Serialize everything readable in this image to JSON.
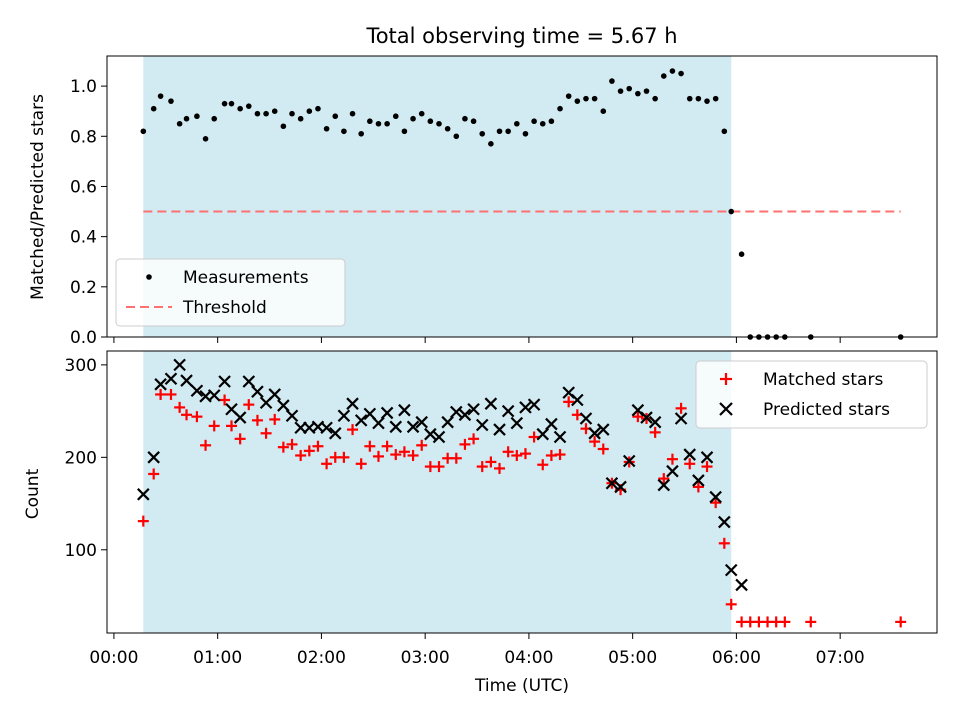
{
  "colors": {
    "shade": "#add8e6",
    "measurement": "#000000",
    "threshold": "#ff7070",
    "matched": "#ff0000",
    "predicted": "#000000"
  },
  "chart_data": [
    {
      "type": "scatter",
      "title": "Total observing time = 5.67 h",
      "ylabel": "Matched/Predicted stars",
      "xlabel": "",
      "xlim": [
        "23:56",
        "07:56"
      ],
      "ylim": [
        0,
        1.12
      ],
      "yticks": [
        "0.0",
        "0.2",
        "0.4",
        "0.6",
        "0.8",
        "1.0"
      ],
      "legend": {
        "placement": "lower-left",
        "entries": [
          "Measurements",
          "Threshold"
        ]
      },
      "shaded_interval": [
        "00:17",
        "05:57"
      ],
      "threshold": {
        "y": 0.5,
        "x_range": [
          "00:17",
          "07:35"
        ]
      },
      "series": [
        {
          "name": "Measurements",
          "x": [
            "00:17",
            "00:23",
            "00:27",
            "00:33",
            "00:38",
            "00:42",
            "00:48",
            "00:53",
            "00:58",
            "01:04",
            "01:08",
            "01:13",
            "01:18",
            "01:23",
            "01:28",
            "01:33",
            "01:38",
            "01:43",
            "01:48",
            "01:53",
            "01:58",
            "02:03",
            "02:08",
            "02:13",
            "02:18",
            "02:23",
            "02:28",
            "02:33",
            "02:38",
            "02:43",
            "02:48",
            "02:53",
            "02:58",
            "03:03",
            "03:08",
            "03:13",
            "03:18",
            "03:23",
            "03:28",
            "03:33",
            "03:38",
            "03:43",
            "03:48",
            "03:53",
            "03:58",
            "04:03",
            "04:08",
            "04:13",
            "04:18",
            "04:23",
            "04:28",
            "04:33",
            "04:38",
            "04:43",
            "04:48",
            "04:53",
            "04:58",
            "05:03",
            "05:08",
            "05:13",
            "05:18",
            "05:23",
            "05:28",
            "05:33",
            "05:38",
            "05:43",
            "05:48",
            "05:53",
            "05:57",
            "06:03",
            "06:08",
            "06:13",
            "06:18",
            "06:23",
            "06:28",
            "06:43",
            "07:35"
          ],
          "y": [
            0.82,
            0.91,
            0.96,
            0.94,
            0.85,
            0.87,
            0.88,
            0.79,
            0.87,
            0.93,
            0.93,
            0.91,
            0.92,
            0.89,
            0.89,
            0.9,
            0.84,
            0.89,
            0.87,
            0.9,
            0.91,
            0.83,
            0.88,
            0.82,
            0.89,
            0.81,
            0.86,
            0.85,
            0.85,
            0.88,
            0.82,
            0.87,
            0.89,
            0.86,
            0.85,
            0.83,
            0.8,
            0.87,
            0.86,
            0.81,
            0.77,
            0.82,
            0.82,
            0.85,
            0.81,
            0.86,
            0.85,
            0.86,
            0.91,
            0.96,
            0.94,
            0.95,
            0.95,
            0.9,
            1.02,
            0.98,
            0.99,
            0.97,
            0.98,
            0.95,
            1.04,
            1.06,
            1.05,
            0.95,
            0.95,
            0.94,
            0.95,
            0.82,
            0.5,
            0.33,
            0.0,
            0.0,
            0.0,
            0.0,
            0.0,
            0.0,
            0.0
          ]
        }
      ]
    },
    {
      "type": "scatter",
      "title": "",
      "ylabel": "Count",
      "xlabel": "Time (UTC)",
      "xlim": [
        "23:56",
        "07:56"
      ],
      "ylim": [
        10,
        315
      ],
      "yticks": [
        "100",
        "200",
        "300"
      ],
      "xticks": [
        "00:00",
        "01:00",
        "02:00",
        "03:00",
        "04:00",
        "05:00",
        "06:00",
        "07:00"
      ],
      "legend": {
        "placement": "upper-right",
        "entries": [
          "Matched stars",
          "Predicted stars"
        ]
      },
      "shaded_interval": [
        "00:17",
        "05:57"
      ],
      "series": [
        {
          "name": "Matched stars",
          "x": [
            "00:17",
            "00:23",
            "00:27",
            "00:33",
            "00:38",
            "00:42",
            "00:48",
            "00:53",
            "00:58",
            "01:04",
            "01:08",
            "01:13",
            "01:18",
            "01:23",
            "01:28",
            "01:33",
            "01:38",
            "01:43",
            "01:48",
            "01:53",
            "01:58",
            "02:03",
            "02:08",
            "02:13",
            "02:18",
            "02:23",
            "02:28",
            "02:33",
            "02:38",
            "02:43",
            "02:48",
            "02:53",
            "02:58",
            "03:03",
            "03:08",
            "03:13",
            "03:18",
            "03:23",
            "03:28",
            "03:33",
            "03:38",
            "03:43",
            "03:48",
            "03:53",
            "03:58",
            "04:03",
            "04:08",
            "04:13",
            "04:18",
            "04:23",
            "04:28",
            "04:33",
            "04:38",
            "04:43",
            "04:48",
            "04:53",
            "04:58",
            "05:03",
            "05:08",
            "05:13",
            "05:18",
            "05:23",
            "05:28",
            "05:33",
            "05:38",
            "05:43",
            "05:48",
            "05:53",
            "05:57",
            "06:03",
            "06:08",
            "06:13",
            "06:18",
            "06:23",
            "06:28",
            "06:43",
            "07:35"
          ],
          "y": [
            131,
            182,
            268,
            268,
            254,
            246,
            244,
            213,
            234,
            262,
            234,
            220,
            257,
            240,
            226,
            241,
            211,
            214,
            202,
            207,
            212,
            193,
            200,
            200,
            230,
            193,
            212,
            201,
            212,
            203,
            206,
            202,
            213,
            190,
            190,
            199,
            199,
            214,
            220,
            190,
            195,
            188,
            206,
            202,
            204,
            222,
            192,
            202,
            203,
            260,
            246,
            231,
            217,
            209,
            172,
            165,
            195,
            244,
            242,
            227,
            177,
            198,
            253,
            193,
            168,
            190,
            151,
            107,
            41,
            22,
            22,
            22,
            22,
            22,
            22,
            22,
            22
          ]
        },
        {
          "name": "Predicted stars",
          "x": [
            "00:17",
            "00:23",
            "00:27",
            "00:33",
            "00:38",
            "00:42",
            "00:48",
            "00:53",
            "00:58",
            "01:04",
            "01:08",
            "01:13",
            "01:18",
            "01:23",
            "01:28",
            "01:33",
            "01:38",
            "01:43",
            "01:48",
            "01:53",
            "01:58",
            "02:03",
            "02:08",
            "02:13",
            "02:18",
            "02:23",
            "02:28",
            "02:33",
            "02:38",
            "02:43",
            "02:48",
            "02:53",
            "02:58",
            "03:03",
            "03:08",
            "03:13",
            "03:18",
            "03:23",
            "03:28",
            "03:33",
            "03:38",
            "03:43",
            "03:48",
            "03:53",
            "03:58",
            "04:03",
            "04:08",
            "04:13",
            "04:18",
            "04:23",
            "04:28",
            "04:33",
            "04:38",
            "04:43",
            "04:48",
            "04:53",
            "04:58",
            "05:03",
            "05:08",
            "05:13",
            "05:18",
            "05:23",
            "05:28",
            "05:33",
            "05:38",
            "05:43",
            "05:48",
            "05:53",
            "05:57",
            "06:03"
          ],
          "y": [
            160,
            200,
            279,
            285,
            300,
            283,
            272,
            266,
            267,
            282,
            252,
            243,
            282,
            271,
            259,
            268,
            256,
            245,
            232,
            232,
            233,
            232,
            226,
            245,
            258,
            240,
            247,
            237,
            248,
            233,
            251,
            233,
            238,
            225,
            222,
            238,
            249,
            246,
            252,
            235,
            258,
            230,
            250,
            237,
            254,
            257,
            225,
            236,
            222,
            270,
            262,
            242,
            226,
            230,
            172,
            168,
            196,
            251,
            243,
            238,
            170,
            185,
            242,
            203,
            175,
            200,
            157,
            130,
            78,
            62
          ]
        }
      ]
    }
  ]
}
